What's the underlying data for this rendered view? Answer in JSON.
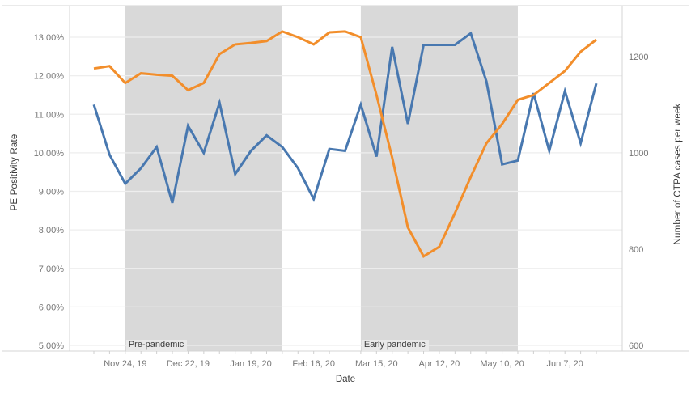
{
  "chart_data": {
    "type": "line",
    "title": "",
    "xlabel": "Date",
    "x": [
      "Nov 10, 19",
      "Nov 17, 19",
      "Nov 24, 19",
      "Dec 1, 19",
      "Dec 8, 19",
      "Dec 15, 19",
      "Dec 22, 19",
      "Dec 29, 19",
      "Jan 5, 20",
      "Jan 12, 20",
      "Jan 19, 20",
      "Jan 26, 20",
      "Feb 2, 20",
      "Feb 9, 20",
      "Feb 16, 20",
      "Feb 23, 20",
      "Mar 1, 20",
      "Mar 8, 20",
      "Mar 15, 20",
      "Mar 22, 20",
      "Mar 29, 20",
      "Apr 5, 20",
      "Apr 12, 20",
      "Apr 19, 20",
      "Apr 26, 20",
      "May 3, 20",
      "May 10, 20",
      "May 17, 20",
      "May 24, 20",
      "May 31, 20",
      "Jun 7, 20",
      "Jun 14, 20",
      "Jun 21, 20"
    ],
    "x_tick_labels": [
      "Nov 24, 19",
      "Dec 22, 19",
      "Jan 19, 20",
      "Feb 16, 20",
      "Mar 15, 20",
      "Apr 12, 20",
      "May 10, 20",
      "Jun 7, 20"
    ],
    "x_tick_label_indices": [
      2,
      6,
      10,
      14,
      18,
      22,
      26,
      30
    ],
    "left_axis": {
      "title": "PE Positivity Rate",
      "tick_labels": [
        "13.00%",
        "12.00%",
        "11.00%",
        "10.00%",
        "9.00%",
        "8.00%",
        "7.00%",
        "6.00%",
        "5.00%"
      ],
      "tick_values": [
        13,
        12,
        11,
        10,
        9,
        8,
        7,
        6,
        5
      ],
      "min": 5,
      "max": 13.8,
      "grid": true
    },
    "right_axis": {
      "title": "Number of CTPA cases per week",
      "tick_labels": [
        "1200",
        "1000",
        "800",
        "600"
      ],
      "tick_values": [
        1200,
        1000,
        800,
        600
      ],
      "min": 600,
      "cases_per_percent": 80
    },
    "series": [
      {
        "name": "PE Positivity Rate",
        "axis": "left",
        "unit": "%",
        "color": "#4878b0",
        "values": [
          11.25,
          9.95,
          9.2,
          9.6,
          10.15,
          8.7,
          10.7,
          10.0,
          11.3,
          9.45,
          10.05,
          10.45,
          10.15,
          9.6,
          8.8,
          10.1,
          10.05,
          11.25,
          9.9,
          12.75,
          10.75,
          12.8,
          12.8,
          12.8,
          13.1,
          11.85,
          9.7,
          9.8,
          11.55,
          10.05,
          11.6,
          10.25,
          11.8
        ]
      },
      {
        "name": "Number of CTPA cases per week",
        "axis": "right",
        "unit": "cases",
        "color": "#f28e2b",
        "values": [
          1175,
          1180,
          1145,
          1165,
          1162,
          1160,
          1130,
          1145,
          1205,
          1225,
          1228,
          1232,
          1252,
          1240,
          1225,
          1250,
          1252,
          1240,
          1120,
          990,
          845,
          785,
          805,
          875,
          950,
          1020,
          1060,
          1110,
          1120,
          1145,
          1170,
          1210,
          1235
        ]
      }
    ],
    "bands": [
      {
        "label": "Pre-pandemic",
        "start_index": 2,
        "end_index": 12,
        "start_date": "Nov 24, 19",
        "end_date": "Feb 2, 20"
      },
      {
        "label": "Early pandemic",
        "start_index": 17,
        "end_index": 27,
        "start_date": "Mar 8, 20",
        "end_date": "May 17, 20"
      }
    ],
    "colors": {
      "pe_line": "#4878b0",
      "ctpa_line": "#f28e2b",
      "band_fill": "#d9d9d9",
      "gridline": "#eeeeee",
      "axis_line": "#d4d4d4",
      "tick_text": "#767676",
      "title_text": "#393939"
    },
    "legend": {
      "position": "none"
    }
  }
}
